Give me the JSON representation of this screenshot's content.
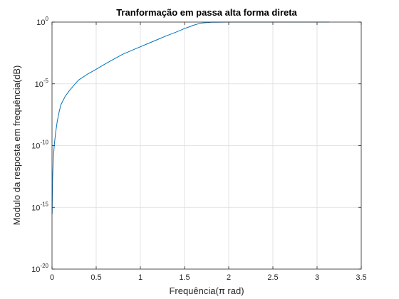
{
  "chart_data": {
    "type": "line",
    "title": "Tranformação em passa alta forma direta",
    "xlabel": "Frequência(π rad)",
    "ylabel": "Modulo da resposta em frequência(dB)",
    "xlim": [
      0,
      3.5
    ],
    "ylim": [
      1e-20,
      1
    ],
    "yscale": "log",
    "grid": true,
    "x_ticks": [
      {
        "value": 0,
        "label": "0"
      },
      {
        "value": 0.5,
        "label": "0.5"
      },
      {
        "value": 1,
        "label": "1"
      },
      {
        "value": 1.5,
        "label": "1.5"
      },
      {
        "value": 2,
        "label": "2"
      },
      {
        "value": 2.5,
        "label": "2.5"
      },
      {
        "value": 3,
        "label": "3"
      },
      {
        "value": 3.5,
        "label": "3.5"
      }
    ],
    "y_ticks": [
      {
        "exp": 0,
        "base": "10",
        "sup": "0"
      },
      {
        "exp": -5,
        "base": "10",
        "sup": "-5"
      },
      {
        "exp": -10,
        "base": "10",
        "sup": "-10"
      },
      {
        "exp": -15,
        "base": "10",
        "sup": "-15"
      },
      {
        "exp": -20,
        "base": "10",
        "sup": "-20"
      }
    ],
    "series": [
      {
        "color": "#0072bd",
        "x": [
          0.0015,
          0.004,
          0.008,
          0.015,
          0.025,
          0.04,
          0.06,
          0.08,
          0.1,
          0.15,
          0.2,
          0.25,
          0.3,
          0.4,
          0.5,
          0.6,
          0.7,
          0.8,
          0.9,
          1.0,
          1.1,
          1.2,
          1.3,
          1.4,
          1.5,
          1.55,
          1.6,
          1.65,
          1.7,
          1.8,
          2.0,
          2.5,
          3.0,
          3.14
        ],
        "y": [
          3e-16,
          2e-14,
          5e-13,
          1e-11,
          1e-10,
          1e-09,
          1e-08,
          5e-08,
          2e-07,
          1e-06,
          3e-06,
          8e-06,
          2e-05,
          6e-05,
          0.00015,
          0.0004,
          0.001,
          0.0025,
          0.005,
          0.01,
          0.02,
          0.04,
          0.08,
          0.15,
          0.3,
          0.4,
          0.55,
          0.7,
          0.85,
          0.97,
          1,
          1,
          1,
          1
        ]
      }
    ]
  }
}
